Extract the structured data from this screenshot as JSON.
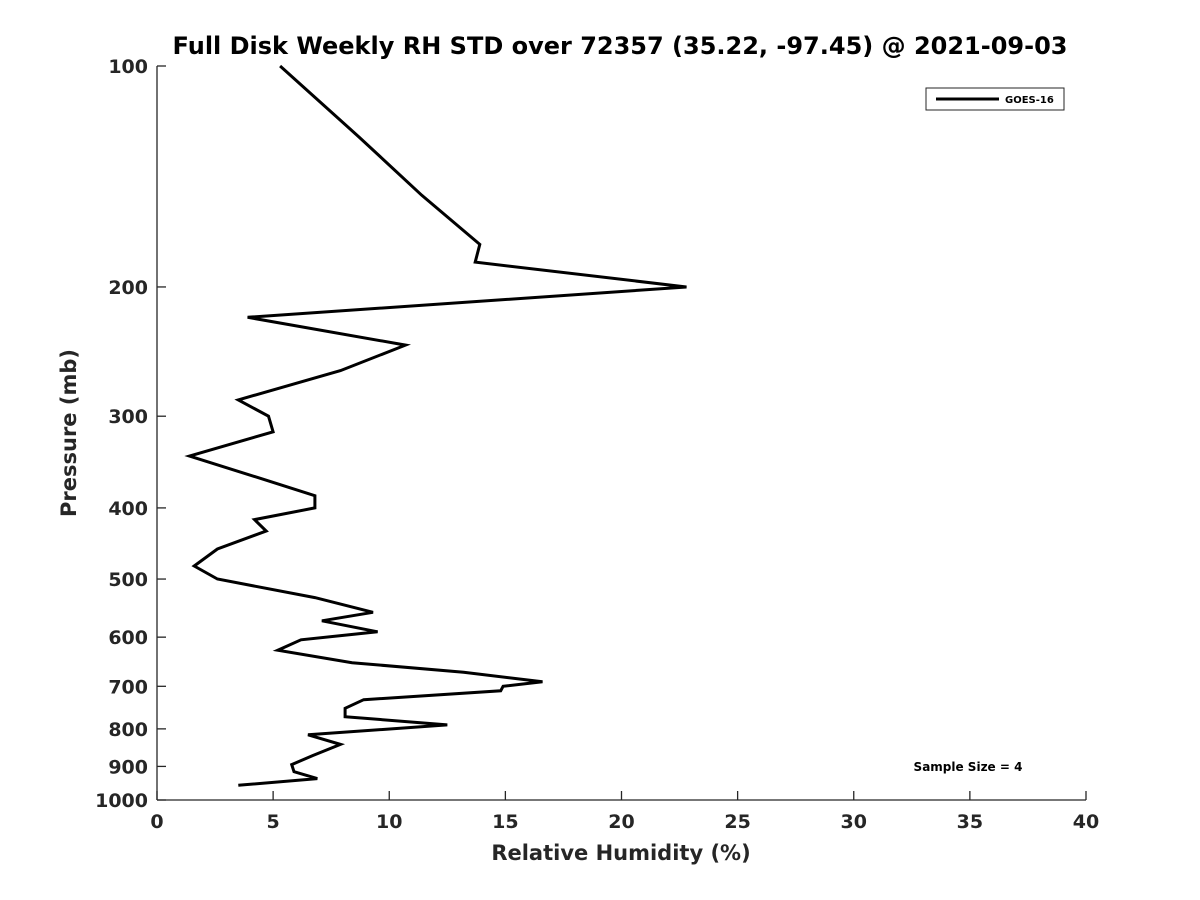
{
  "chart_data": {
    "type": "line",
    "title": "Full Disk Weekly RH STD over 72357 (35.22, -97.45) @ 2021-09-03",
    "xlabel": "Relative Humidity (%)",
    "ylabel": "Pressure (mb)",
    "xlim": [
      0,
      40
    ],
    "ylim": [
      100,
      1000
    ],
    "y_scale": "log",
    "y_reversed": true,
    "grid": false,
    "xticks": [
      0,
      5,
      10,
      15,
      20,
      25,
      30,
      35,
      40
    ],
    "yticks": [
      100,
      200,
      300,
      400,
      500,
      600,
      700,
      800,
      900,
      1000
    ],
    "legend": {
      "location": "top-right",
      "entries": [
        "GOES-16"
      ]
    },
    "annotation": "Sample Size = 4",
    "series": [
      {
        "name": "GOES-16",
        "color": "#000000",
        "x": [
          5.3,
          8.7,
          11.4,
          13.9,
          13.7,
          22.8,
          3.9,
          10.7,
          7.9,
          3.5,
          4.8,
          5.0,
          1.4,
          4.5,
          6.8,
          6.8,
          4.2,
          4.7,
          2.6,
          1.6,
          2.6,
          6.8,
          9.3,
          7.1,
          9.5,
          6.2,
          5.2,
          8.4,
          13.2,
          16.6,
          14.9,
          14.8,
          8.9,
          8.1,
          8.1,
          12.5,
          6.5,
          7.9,
          6.7,
          5.8,
          5.9,
          6.9,
          3.5
        ],
        "y": [
          100,
          125,
          150,
          175,
          185,
          200,
          220,
          240,
          260,
          285,
          300,
          315,
          340,
          365,
          385,
          400,
          415,
          430,
          455,
          480,
          500,
          530,
          555,
          570,
          590,
          605,
          625,
          650,
          670,
          690,
          700,
          710,
          730,
          750,
          770,
          790,
          815,
          840,
          870,
          895,
          915,
          935,
          955
        ]
      }
    ]
  }
}
